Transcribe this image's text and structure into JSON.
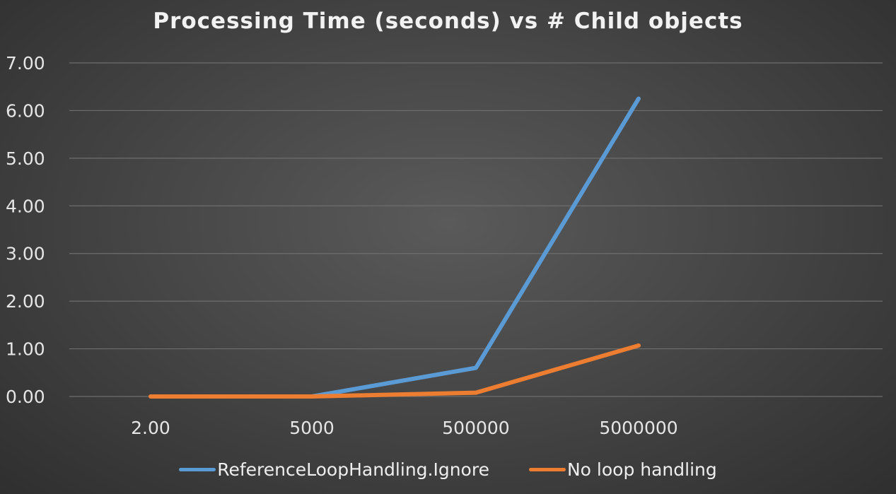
{
  "chart_data": {
    "type": "line",
    "title": "Processing Time (seconds) vs # Child objects",
    "xlabel": "",
    "ylabel": "",
    "categories": [
      "2.00",
      "5000",
      "500000",
      "5000000"
    ],
    "ylim": [
      0,
      7
    ],
    "yticks": [
      "0.00",
      "1.00",
      "2.00",
      "3.00",
      "4.00",
      "5.00",
      "6.00",
      "7.00"
    ],
    "grid": true,
    "legend_position": "bottom",
    "series": [
      {
        "name": "ReferenceLoopHandling.Ignore",
        "color": "#5b9bd5",
        "values": [
          0,
          0,
          0.6,
          6.25
        ]
      },
      {
        "name": "No loop handling",
        "color": "#ed7d31",
        "values": [
          0,
          0,
          0.08,
          1.07
        ]
      }
    ]
  }
}
